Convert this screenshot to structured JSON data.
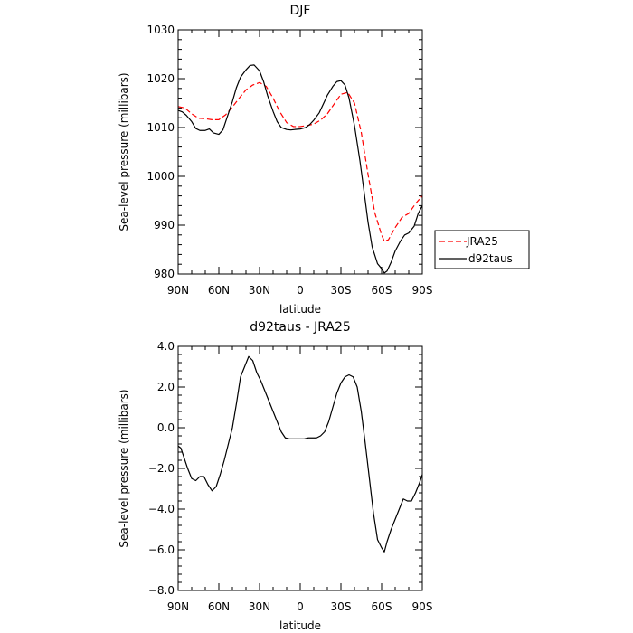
{
  "chart_data": [
    {
      "type": "line",
      "title": "DJF",
      "xlabel": "latitude",
      "ylabel": "Sea-level pressure (millibars)",
      "x_ticks": [
        90,
        60,
        30,
        0,
        -30,
        -60,
        -90
      ],
      "x_tick_labels": [
        "90N",
        "60N",
        "30N",
        "0",
        "30S",
        "60S",
        "90S"
      ],
      "xlim": [
        90,
        -90
      ],
      "ylim": [
        980,
        1030
      ],
      "y_ticks": [
        980,
        990,
        1000,
        1010,
        1020,
        1030
      ],
      "y_tick_labels": [
        "980",
        "990",
        "1000",
        "1010",
        "1020",
        "1030"
      ],
      "legend": {
        "placement": "right",
        "entries": [
          "JRA25",
          "d92taus"
        ]
      },
      "series": [
        {
          "name": "JRA25",
          "color": "#ff0000",
          "dash": "dashed",
          "x": [
            90,
            85,
            80,
            75,
            70,
            65,
            60,
            55,
            50,
            45,
            40,
            35,
            30,
            25,
            20,
            15,
            10,
            5,
            0,
            -5,
            -10,
            -15,
            -20,
            -25,
            -30,
            -35,
            -40,
            -45,
            -50,
            -55,
            -60,
            -62,
            -65,
            -70,
            -75,
            -80,
            -85,
            -90
          ],
          "y": [
            1014.3,
            1014.0,
            1012.8,
            1011.9,
            1011.8,
            1011.6,
            1011.6,
            1012.6,
            1014.2,
            1016.0,
            1017.7,
            1018.7,
            1019.2,
            1018.4,
            1016.0,
            1013.2,
            1011.0,
            1010.2,
            1010.2,
            1010.4,
            1010.7,
            1011.5,
            1012.8,
            1014.8,
            1016.8,
            1017.2,
            1015.0,
            1009.0,
            1000.4,
            992.5,
            988.0,
            986.7,
            987.0,
            989.5,
            991.6,
            992.4,
            994.4,
            996.0
          ]
        },
        {
          "name": "d92taus",
          "color": "#000000",
          "dash": "solid",
          "x": [
            90,
            87,
            84,
            80,
            77,
            74,
            70,
            67,
            64,
            60,
            57,
            54,
            50,
            47,
            44,
            40,
            37,
            34,
            30,
            27,
            24,
            20,
            17,
            14,
            10,
            7,
            4,
            0,
            -4,
            -7,
            -10,
            -14,
            -17,
            -20,
            -24,
            -27,
            -30,
            -33,
            -36,
            -40,
            -44,
            -47,
            -50,
            -53,
            -57,
            -60,
            -62,
            -64,
            -67,
            -70,
            -74,
            -77,
            -80,
            -84,
            -87,
            -90
          ],
          "y": [
            1013.5,
            1013.2,
            1012.5,
            1011.2,
            1009.8,
            1009.4,
            1009.4,
            1009.7,
            1008.9,
            1008.6,
            1009.5,
            1012.0,
            1015.3,
            1018.2,
            1020.3,
            1021.8,
            1022.7,
            1022.8,
            1021.6,
            1019.4,
            1016.5,
            1013.3,
            1011.2,
            1010.0,
            1009.6,
            1009.5,
            1009.6,
            1009.7,
            1010.0,
            1010.6,
            1011.5,
            1013.0,
            1014.8,
            1016.6,
            1018.4,
            1019.4,
            1019.6,
            1018.7,
            1016.0,
            1010.4,
            1003.2,
            997.0,
            990.6,
            985.6,
            982.1,
            981.1,
            980.2,
            980.6,
            982.4,
            984.7,
            986.8,
            988.0,
            988.4,
            989.8,
            992.4,
            994.0
          ]
        }
      ]
    },
    {
      "type": "line",
      "title": "d92taus - JRA25",
      "xlabel": "latitude",
      "ylabel": "Sea-level pressure (millibars)",
      "x_ticks": [
        90,
        60,
        30,
        0,
        -30,
        -60,
        -90
      ],
      "x_tick_labels": [
        "90N",
        "60N",
        "30N",
        "0",
        "30S",
        "60S",
        "90S"
      ],
      "xlim": [
        90,
        -90
      ],
      "ylim": [
        -8.0,
        4.0
      ],
      "y_ticks": [
        -8,
        -6,
        -4,
        -2,
        0,
        2,
        4
      ],
      "y_tick_labels": [
        "−8.0",
        "−6.0",
        "−4.0",
        "−2.0",
        "0.0",
        "2.0",
        "4.0"
      ],
      "series": [
        {
          "name": "d92taus - JRA25",
          "color": "#000000",
          "dash": "solid",
          "x": [
            90,
            88,
            86,
            83,
            80,
            77,
            74,
            71,
            68,
            65,
            62,
            59,
            56,
            53,
            50,
            47,
            44,
            41,
            38,
            35,
            32,
            29,
            26,
            23,
            20,
            17,
            14,
            11,
            8,
            5,
            2,
            0,
            -3,
            -6,
            -9,
            -12,
            -15,
            -18,
            -21,
            -24,
            -27,
            -30,
            -33,
            -36,
            -39,
            -42,
            -45,
            -48,
            -51,
            -54,
            -57,
            -60,
            -62,
            -64,
            -67,
            -70,
            -73,
            -76,
            -79,
            -82,
            -85,
            -88,
            -90
          ],
          "y": [
            -0.9,
            -1.0,
            -1.4,
            -2.0,
            -2.5,
            -2.6,
            -2.4,
            -2.4,
            -2.8,
            -3.1,
            -2.9,
            -2.3,
            -1.6,
            -0.8,
            0.0,
            1.2,
            2.5,
            3.0,
            3.5,
            3.3,
            2.7,
            2.3,
            1.8,
            1.3,
            0.8,
            0.3,
            -0.2,
            -0.5,
            -0.55,
            -0.55,
            -0.55,
            -0.55,
            -0.55,
            -0.5,
            -0.5,
            -0.5,
            -0.4,
            -0.2,
            0.3,
            1.0,
            1.7,
            2.2,
            2.5,
            2.6,
            2.5,
            2.0,
            0.8,
            -0.8,
            -2.5,
            -4.2,
            -5.5,
            -5.9,
            -6.1,
            -5.6,
            -5.0,
            -4.5,
            -4.0,
            -3.5,
            -3.6,
            -3.6,
            -3.2,
            -2.7,
            -2.3
          ]
        }
      ]
    }
  ]
}
